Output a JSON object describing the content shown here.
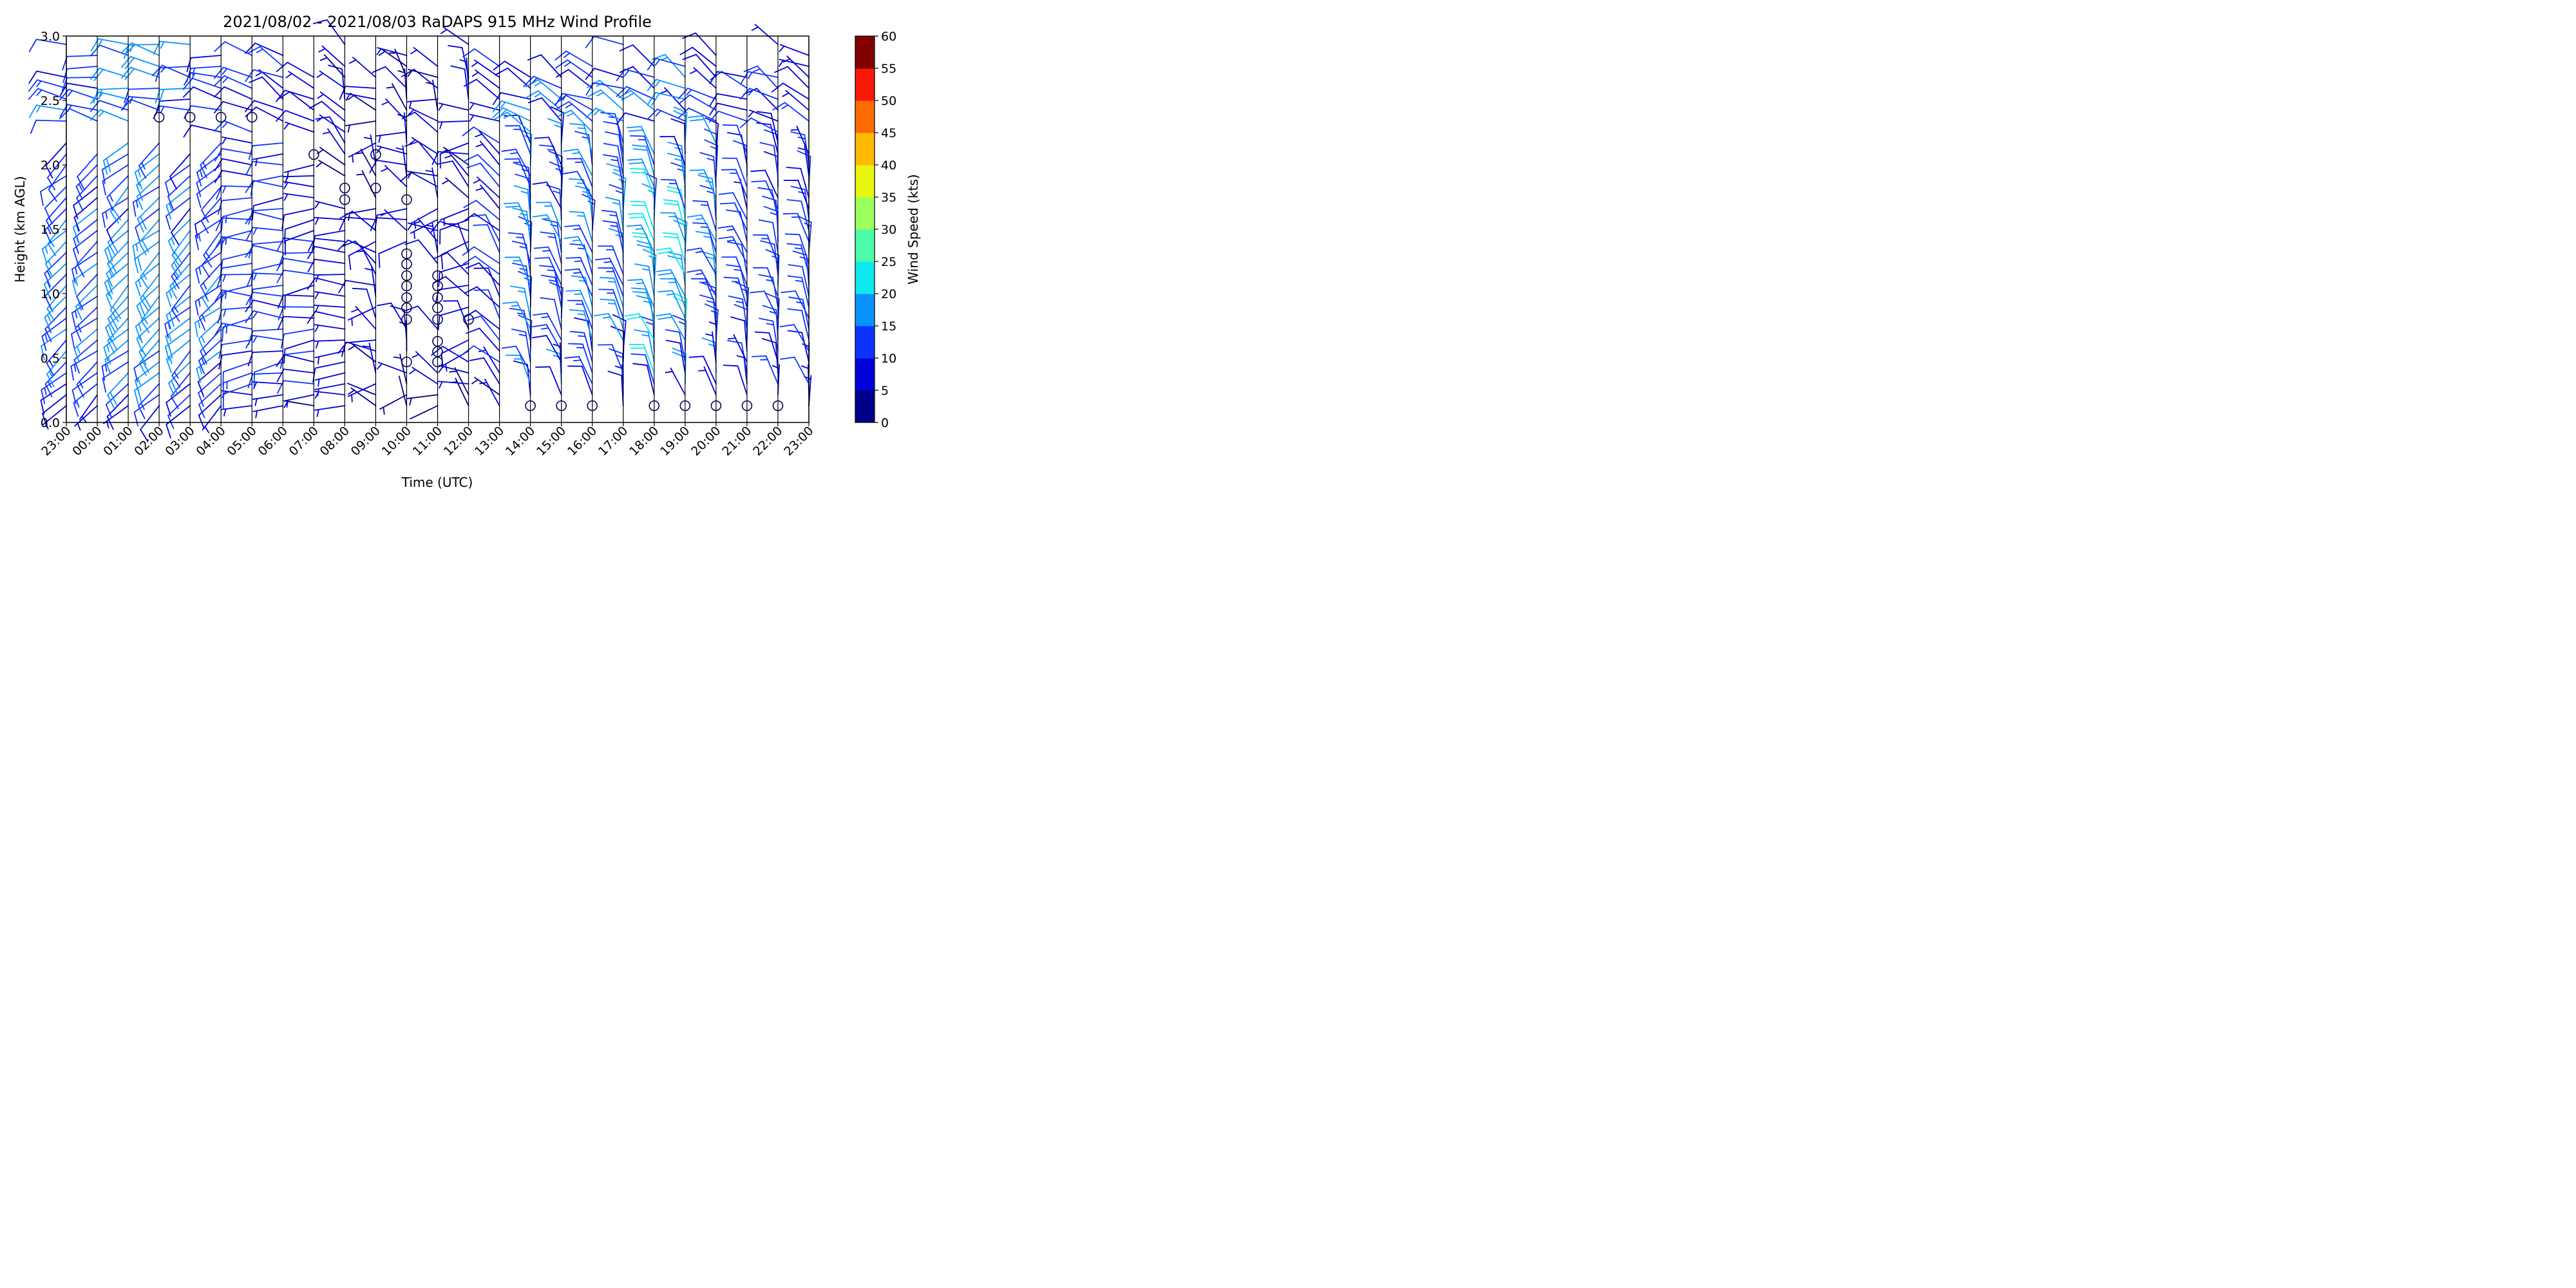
{
  "chart_data": {
    "type": "wind_barb_profile",
    "title": "2021/08/02 - 2021/08/03 RaDAPS 915 MHz Wind Profile",
    "xlabel": "Time (UTC)",
    "ylabel": "Height (km AGL)",
    "xticks": [
      "23:00",
      "00:00",
      "01:00",
      "02:00",
      "03:00",
      "04:00",
      "05:00",
      "06:00",
      "07:00",
      "08:00",
      "09:00",
      "10:00",
      "11:00",
      "12:00",
      "13:00",
      "14:00",
      "15:00",
      "16:00",
      "17:00",
      "18:00",
      "19:00",
      "20:00",
      "21:00",
      "22:00",
      "23:00"
    ],
    "yticks": [
      "0.0",
      "0.5",
      "1.0",
      "1.5",
      "2.0",
      "2.5",
      "3.0"
    ],
    "ylim": [
      0,
      3
    ],
    "colorbar": {
      "label": "Wind Speed (kts)",
      "ticks": [
        "0",
        "5",
        "10",
        "15",
        "20",
        "25",
        "30",
        "35",
        "40",
        "45",
        "50",
        "55",
        "60"
      ],
      "colors": [
        "#00008b",
        "#0000d9",
        "#0d33ff",
        "#0a93ff",
        "#0fe8ef",
        "#4dfca8",
        "#9bff5c",
        "#e8f511",
        "#ffba00",
        "#ff6a00",
        "#f81808",
        "#820000"
      ]
    },
    "series": [
      {
        "time": "23:00",
        "profile": "sw_upper",
        "speed_range": [
          8,
          17
        ]
      },
      {
        "time": "00:00",
        "profile": "sw_upper",
        "speed_range": [
          7,
          16
        ]
      },
      {
        "time": "01:00",
        "profile": "sw_upper",
        "speed_range": [
          9,
          20
        ]
      },
      {
        "time": "02:00",
        "profile": "sw_upper",
        "speed_range": [
          10,
          20
        ],
        "calm_heights": [
          2.37
        ]
      },
      {
        "time": "03:00",
        "profile": "sw_upper",
        "speed_range": [
          9,
          19
        ],
        "calm_heights": [
          2.37
        ]
      },
      {
        "time": "04:00",
        "profile": "sw_upper",
        "speed_range": [
          8,
          16
        ],
        "calm_heights": [
          2.37
        ]
      },
      {
        "time": "05:00",
        "profile": "west",
        "speed_range": [
          7,
          15
        ],
        "calm_heights": [
          2.37
        ]
      },
      {
        "time": "06:00",
        "profile": "west",
        "speed_range": [
          6,
          13
        ]
      },
      {
        "time": "07:00",
        "profile": "west",
        "speed_range": [
          5,
          11
        ],
        "calm_heights": [
          2.08
        ]
      },
      {
        "time": "08:00",
        "profile": "west_backing",
        "speed_range": [
          4,
          10
        ],
        "calm_heights": [
          1.82,
          1.73
        ]
      },
      {
        "time": "09:00",
        "profile": "variable",
        "speed_range": [
          3,
          9
        ],
        "calm_heights": [
          2.08,
          1.82
        ]
      },
      {
        "time": "10:00",
        "profile": "variable",
        "speed_range": [
          3,
          9
        ],
        "calm_heights": [
          1.73,
          1.31,
          1.23,
          1.14,
          1.06,
          0.97,
          0.89,
          0.8,
          0.47
        ]
      },
      {
        "time": "11:00",
        "profile": "variable",
        "speed_range": [
          3,
          9
        ],
        "calm_heights": [
          1.14,
          1.06,
          0.97,
          0.89,
          0.8,
          0.63,
          0.55,
          0.47
        ]
      },
      {
        "time": "12:00",
        "profile": "variable",
        "speed_range": [
          4,
          10
        ],
        "calm_heights": [
          0.8
        ]
      },
      {
        "time": "13:00",
        "profile": "nw_low",
        "speed_range": [
          5,
          12
        ]
      },
      {
        "time": "14:00",
        "profile": "northerly",
        "speed_range": [
          8,
          18
        ],
        "calm_heights": [
          0.13
        ]
      },
      {
        "time": "15:00",
        "profile": "northerly",
        "speed_range": [
          7,
          16
        ],
        "calm_heights": [
          0.13
        ]
      },
      {
        "time": "16:00",
        "profile": "northerly",
        "speed_range": [
          8,
          17
        ],
        "calm_heights": [
          0.13
        ]
      },
      {
        "time": "17:00",
        "profile": "northerly",
        "speed_range": [
          8,
          17
        ]
      },
      {
        "time": "18:00",
        "profile": "northerly",
        "speed_range": [
          8,
          22
        ],
        "calm_heights": [
          0.13
        ]
      },
      {
        "time": "19:00",
        "profile": "northerly",
        "speed_range": [
          7,
          22
        ],
        "calm_heights": [
          0.13
        ]
      },
      {
        "time": "20:00",
        "profile": "northerly",
        "speed_range": [
          6,
          18
        ],
        "calm_heights": [
          0.13
        ]
      },
      {
        "time": "21:00",
        "profile": "northerly",
        "speed_range": [
          6,
          14
        ],
        "calm_heights": [
          0.13
        ]
      },
      {
        "time": "22:00",
        "profile": "northerly",
        "speed_range": [
          6,
          14
        ],
        "calm_heights": [
          0.13
        ]
      },
      {
        "time": "23:00",
        "profile": "northerly",
        "speed_range": [
          6,
          14
        ]
      }
    ]
  }
}
